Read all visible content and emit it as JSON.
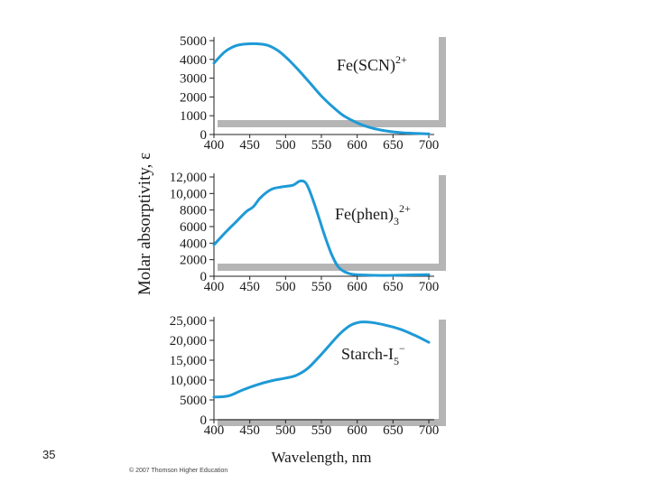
{
  "slide": {
    "number": "35",
    "copyright": "© 2007 Thomson Higher Education"
  },
  "colors": {
    "curve": "#1e9ad6",
    "panel": "#ffffff",
    "frame": "#9a9a9a"
  },
  "chart_data": [
    {
      "type": "line",
      "label_main": "Fe(SCN)",
      "label_sup": "2+",
      "xlabel": "Wavelength, nm",
      "ylabel": "Molar absorptivity, ε",
      "xlim": [
        400,
        700
      ],
      "ylim": [
        0,
        5000
      ],
      "x_ticks": [
        "400",
        "450",
        "500",
        "550",
        "600",
        "650",
        "700"
      ],
      "y_ticks": [
        {
          "value": 0,
          "label": "0"
        },
        {
          "value": 1000,
          "label": "1000"
        },
        {
          "value": 2000,
          "label": "2000"
        },
        {
          "value": 3000,
          "label": "3000"
        },
        {
          "value": 4000,
          "label": "4000"
        },
        {
          "value": 5000,
          "label": "5000"
        }
      ],
      "series": [
        {
          "name": "Fe(SCN)2+",
          "x": [
            400,
            415,
            430,
            445,
            460,
            475,
            490,
            505,
            520,
            535,
            550,
            565,
            580,
            600,
            620,
            640,
            660,
            680,
            700
          ],
          "y": [
            3800,
            4400,
            4720,
            4820,
            4830,
            4750,
            4450,
            3950,
            3350,
            2700,
            2050,
            1500,
            1030,
            620,
            350,
            190,
            100,
            60,
            40
          ]
        }
      ]
    },
    {
      "type": "line",
      "label_main": "Fe(phen)",
      "label_sub": "3",
      "label_sup": "2+",
      "xlim": [
        400,
        700
      ],
      "ylim": [
        0,
        12000
      ],
      "x_ticks": [
        "400",
        "450",
        "500",
        "550",
        "600",
        "650",
        "700"
      ],
      "y_ticks": [
        {
          "value": 0,
          "label": "0"
        },
        {
          "value": 2000,
          "label": "2000"
        },
        {
          "value": 4000,
          "label": "4000"
        },
        {
          "value": 6000,
          "label": "6000"
        },
        {
          "value": 8000,
          "label": "8000"
        },
        {
          "value": 10000,
          "label": "10,000"
        },
        {
          "value": 12000,
          "label": "12,000"
        }
      ],
      "series": [
        {
          "name": "Fe(phen)3 2+",
          "x": [
            400,
            415,
            430,
            445,
            455,
            465,
            480,
            495,
            510,
            520,
            528,
            535,
            545,
            555,
            565,
            575,
            590,
            610,
            640,
            670,
            700
          ],
          "y": [
            3800,
            5200,
            6500,
            7800,
            8400,
            9500,
            10500,
            10800,
            11000,
            11500,
            11300,
            10000,
            7500,
            4800,
            2500,
            1000,
            300,
            150,
            100,
            150,
            200
          ]
        }
      ]
    },
    {
      "type": "line",
      "label_main": "Starch-I",
      "label_sub": "5",
      "label_sup": "−",
      "xlim": [
        400,
        700
      ],
      "ylim": [
        0,
        25000
      ],
      "x_ticks": [
        "400",
        "450",
        "500",
        "550",
        "600",
        "650",
        "700"
      ],
      "y_ticks": [
        {
          "value": 0,
          "label": "0"
        },
        {
          "value": 5000,
          "label": "5000"
        },
        {
          "value": 10000,
          "label": "10,000"
        },
        {
          "value": 15000,
          "label": "15,000"
        },
        {
          "value": 20000,
          "label": "20,000"
        },
        {
          "value": 25000,
          "label": "25,000"
        }
      ],
      "series": [
        {
          "name": "Starch-I5-",
          "x": [
            400,
            420,
            440,
            460,
            480,
            500,
            515,
            530,
            545,
            560,
            575,
            590,
            605,
            620,
            640,
            660,
            680,
            700
          ],
          "y": [
            5700,
            6000,
            7500,
            8800,
            9800,
            10500,
            11200,
            12800,
            15500,
            18500,
            21500,
            23700,
            24600,
            24500,
            23800,
            22800,
            21300,
            19500
          ]
        }
      ]
    }
  ]
}
